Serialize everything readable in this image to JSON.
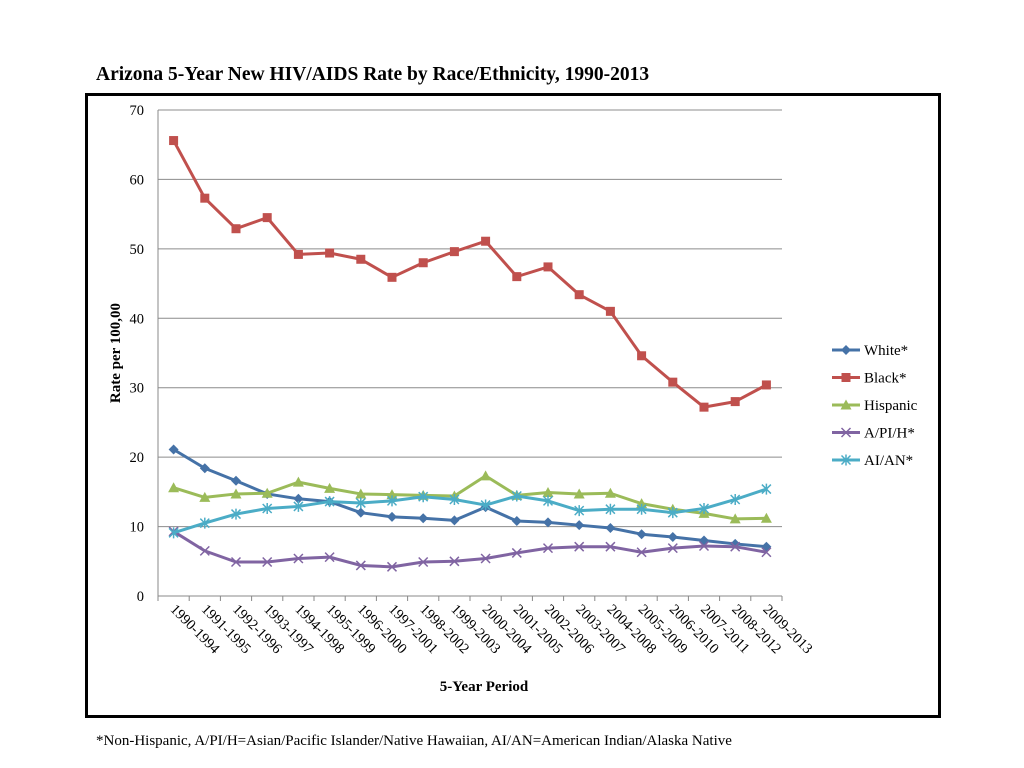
{
  "chart_data": {
    "type": "line",
    "title": "Arizona 5-Year New HIV/AIDS Rate by Race/Ethnicity, 1990-2013",
    "xlabel": "5-Year Period",
    "ylabel": "Rate per 100,00",
    "ylim": [
      0,
      70
    ],
    "yticks": [
      "0",
      "10",
      "20",
      "30",
      "40",
      "50",
      "60",
      "70"
    ],
    "grid": "horizontal",
    "legend_position": "right",
    "categories": [
      "1990-1994",
      "1991-1995",
      "1992-1996",
      "1993-1997",
      "1994-1998",
      "1995-1999",
      "1996-2000",
      "1997-2001",
      "1998-2002",
      "1999-2003",
      "2000-2004",
      "2001-2005",
      "2002-2006",
      "2003-2007",
      "2004-2008",
      "2005-2009",
      "2006-2010",
      "2007-2011",
      "2008-2012",
      "2009-2013"
    ],
    "series": [
      {
        "name": "White*",
        "color": "#4572A7",
        "marker": "diamond",
        "values": [
          21.1,
          18.4,
          16.6,
          14.7,
          14.0,
          13.6,
          12.0,
          11.4,
          11.2,
          10.9,
          12.8,
          10.8,
          10.6,
          10.2,
          9.8,
          8.9,
          8.5,
          8.0,
          7.5,
          7.1
        ]
      },
      {
        "name": "Black*",
        "color": "#C0504D",
        "marker": "square",
        "values": [
          65.6,
          57.3,
          52.9,
          54.5,
          49.2,
          49.4,
          48.5,
          45.9,
          48.0,
          49.6,
          51.1,
          46.0,
          47.4,
          43.4,
          41.0,
          34.6,
          30.8,
          27.2,
          28.0,
          30.4
        ]
      },
      {
        "name": "Hispanic",
        "color": "#9BBB59",
        "marker": "triangle",
        "values": [
          15.6,
          14.2,
          14.7,
          14.8,
          16.4,
          15.5,
          14.7,
          14.6,
          14.5,
          14.4,
          17.3,
          14.5,
          14.9,
          14.7,
          14.8,
          13.3,
          12.5,
          11.9,
          11.1,
          11.2
        ]
      },
      {
        "name": "A/PI/H*",
        "color": "#8064A2",
        "marker": "x",
        "values": [
          9.3,
          6.5,
          4.9,
          4.9,
          5.4,
          5.6,
          4.4,
          4.2,
          4.9,
          5.0,
          5.4,
          6.2,
          6.9,
          7.1,
          7.1,
          6.3,
          6.9,
          7.2,
          7.1,
          6.3
        ]
      },
      {
        "name": "AI/AN*",
        "color": "#4BACC6",
        "marker": "star",
        "values": [
          9.1,
          10.5,
          11.8,
          12.6,
          12.9,
          13.6,
          13.4,
          13.7,
          14.3,
          13.9,
          13.1,
          14.4,
          13.7,
          12.3,
          12.5,
          12.5,
          12.0,
          12.6,
          13.9,
          15.4
        ]
      }
    ]
  },
  "footnote": "*Non-Hispanic, A/PI/H=Asian/Pacific Islander/Native Hawaiian, AI/AN=American Indian/Alaska Native"
}
